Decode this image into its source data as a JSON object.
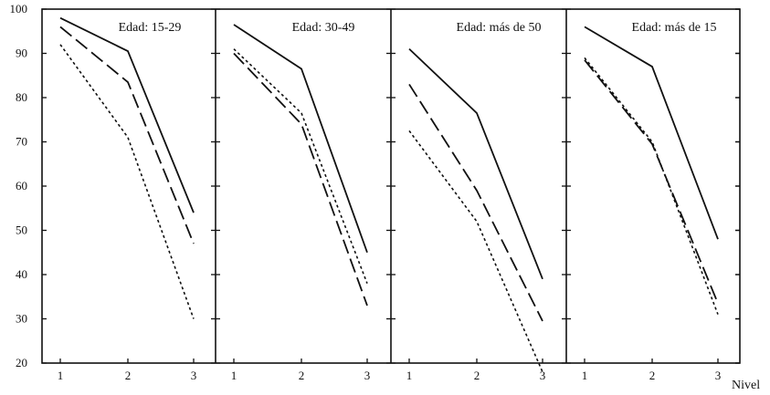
{
  "chart_data": {
    "type": "line",
    "x": [
      1,
      2,
      3
    ],
    "xlabel": "Nivel",
    "ylabel": "",
    "ylim": [
      20,
      100
    ],
    "yticks": [
      "100",
      "90",
      "80",
      "70",
      "60",
      "50",
      "40",
      "30",
      "20"
    ],
    "xticks": [
      "1",
      "2",
      "3"
    ],
    "grid": false,
    "series_styles": [
      "solid",
      "long-dash",
      "dotted"
    ],
    "panels": [
      {
        "title": "Edad: 15-29",
        "series": [
          {
            "style": "solid",
            "values": [
              98,
              90.5,
              54
            ]
          },
          {
            "style": "long-dash",
            "values": [
              96,
              83.5,
              47
            ]
          },
          {
            "style": "dotted",
            "values": [
              92,
              71,
              30
            ]
          }
        ]
      },
      {
        "title": "Edad: 30-49",
        "series": [
          {
            "style": "solid",
            "values": [
              96.5,
              86.5,
              45
            ]
          },
          {
            "style": "long-dash",
            "values": [
              90,
              74,
              33
            ]
          },
          {
            "style": "dotted",
            "values": [
              91,
              76.5,
              38
            ]
          }
        ]
      },
      {
        "title": "Edad: más de 50",
        "series": [
          {
            "style": "solid",
            "values": [
              91,
              76.5,
              39
            ]
          },
          {
            "style": "long-dash",
            "values": [
              83,
              59,
              29.5
            ]
          },
          {
            "style": "dotted",
            "values": [
              72.5,
              52,
              18
            ]
          }
        ]
      },
      {
        "title": "Edad: más de 15",
        "series": [
          {
            "style": "solid",
            "values": [
              96,
              87,
              48
            ]
          },
          {
            "style": "long-dash",
            "values": [
              88.5,
              69.5,
              33.5
            ]
          },
          {
            "style": "dotted",
            "values": [
              89,
              70,
              31
            ]
          }
        ]
      }
    ]
  }
}
